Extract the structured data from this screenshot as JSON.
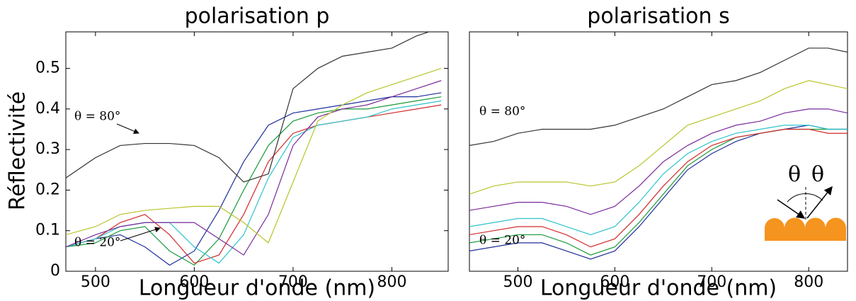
{
  "chart_data": [
    {
      "type": "line",
      "title": "polarisation p",
      "xlabel": "Longueur d'onde (nm)",
      "ylabel": "Réflectivité",
      "x": [
        470,
        500,
        525,
        550,
        575,
        600,
        625,
        650,
        675,
        700,
        725,
        750,
        775,
        800,
        825,
        850
      ],
      "series": [
        {
          "color": "#1f2f9a",
          "values": [
            0.06,
            0.08,
            0.09,
            0.06,
            0.015,
            0.05,
            0.15,
            0.27,
            0.36,
            0.39,
            0.4,
            0.41,
            0.42,
            0.43,
            0.43,
            0.44
          ]
        },
        {
          "color": "#1a9a3a",
          "values": [
            0.06,
            0.07,
            0.1,
            0.11,
            0.05,
            0.015,
            0.08,
            0.2,
            0.31,
            0.37,
            0.39,
            0.4,
            0.4,
            0.41,
            0.42,
            0.43
          ]
        },
        {
          "color": "#d42a2a",
          "values": [
            0.06,
            0.08,
            0.12,
            0.14,
            0.09,
            0.02,
            0.04,
            0.14,
            0.27,
            0.34,
            0.36,
            0.37,
            0.38,
            0.39,
            0.4,
            0.41
          ]
        },
        {
          "color": "#2ec4cc",
          "values": [
            0.06,
            0.08,
            0.11,
            0.12,
            0.12,
            0.06,
            0.02,
            0.09,
            0.23,
            0.33,
            0.36,
            0.37,
            0.38,
            0.4,
            0.41,
            0.42
          ]
        },
        {
          "color": "#7a2a9a",
          "values": [
            0.06,
            0.09,
            0.11,
            0.12,
            0.12,
            0.12,
            0.08,
            0.04,
            0.14,
            0.31,
            0.38,
            0.4,
            0.41,
            0.43,
            0.45,
            0.47
          ]
        },
        {
          "color": "#b8c42a",
          "values": [
            0.09,
            0.11,
            0.14,
            0.15,
            0.155,
            0.16,
            0.16,
            0.12,
            0.07,
            0.22,
            0.37,
            0.41,
            0.44,
            0.46,
            0.48,
            0.5
          ]
        },
        {
          "color": "#333333",
          "values": [
            0.23,
            0.28,
            0.31,
            0.315,
            0.315,
            0.31,
            0.28,
            0.22,
            0.24,
            0.45,
            0.5,
            0.53,
            0.54,
            0.55,
            0.58,
            0.6
          ]
        }
      ],
      "xlim": [
        470,
        857
      ],
      "ylim": [
        0,
        0.59
      ],
      "xticks": [
        500,
        600,
        700,
        800
      ],
      "yticks": [
        0,
        0.1,
        0.2,
        0.3,
        0.4,
        0.5
      ],
      "annotations": [
        "θ = 80°",
        "θ = 20°"
      ]
    },
    {
      "type": "line",
      "title": "polarisation s",
      "xlabel": "Longueur d'onde (nm)",
      "x": [
        450,
        475,
        500,
        525,
        550,
        575,
        600,
        625,
        650,
        675,
        700,
        725,
        750,
        775,
        800,
        820,
        840
      ],
      "series": [
        {
          "color": "#1f2f9a",
          "values": [
            0.05,
            0.06,
            0.07,
            0.07,
            0.05,
            0.03,
            0.05,
            0.11,
            0.18,
            0.25,
            0.29,
            0.32,
            0.34,
            0.35,
            0.36,
            0.35,
            0.35
          ]
        },
        {
          "color": "#1a9a3a",
          "values": [
            0.07,
            0.08,
            0.09,
            0.09,
            0.07,
            0.04,
            0.06,
            0.12,
            0.19,
            0.26,
            0.3,
            0.33,
            0.34,
            0.35,
            0.35,
            0.35,
            0.35
          ]
        },
        {
          "color": "#d42a2a",
          "values": [
            0.09,
            0.1,
            0.11,
            0.11,
            0.09,
            0.06,
            0.08,
            0.14,
            0.21,
            0.27,
            0.31,
            0.33,
            0.34,
            0.35,
            0.35,
            0.34,
            0.34
          ]
        },
        {
          "color": "#2ec4cc",
          "values": [
            0.11,
            0.12,
            0.13,
            0.13,
            0.11,
            0.09,
            0.11,
            0.17,
            0.24,
            0.29,
            0.32,
            0.34,
            0.35,
            0.36,
            0.36,
            0.35,
            0.35
          ]
        },
        {
          "color": "#7a2a9a",
          "values": [
            0.15,
            0.16,
            0.17,
            0.17,
            0.16,
            0.14,
            0.16,
            0.21,
            0.27,
            0.31,
            0.34,
            0.36,
            0.37,
            0.39,
            0.4,
            0.4,
            0.39
          ]
        },
        {
          "color": "#b8c42a",
          "values": [
            0.19,
            0.21,
            0.22,
            0.22,
            0.22,
            0.21,
            0.22,
            0.26,
            0.31,
            0.36,
            0.38,
            0.4,
            0.42,
            0.45,
            0.47,
            0.46,
            0.45
          ]
        },
        {
          "color": "#333333",
          "values": [
            0.31,
            0.32,
            0.34,
            0.35,
            0.35,
            0.35,
            0.36,
            0.38,
            0.4,
            0.43,
            0.46,
            0.47,
            0.49,
            0.52,
            0.55,
            0.55,
            0.54
          ]
        }
      ],
      "xlim": [
        450,
        840
      ],
      "ylim": [
        0,
        0.59
      ],
      "xticks": [
        500,
        600,
        700,
        800
      ],
      "annotations": [
        "θ = 80°",
        "θ = 20°"
      ],
      "inset_labels": [
        "θ",
        "θ"
      ]
    }
  ]
}
